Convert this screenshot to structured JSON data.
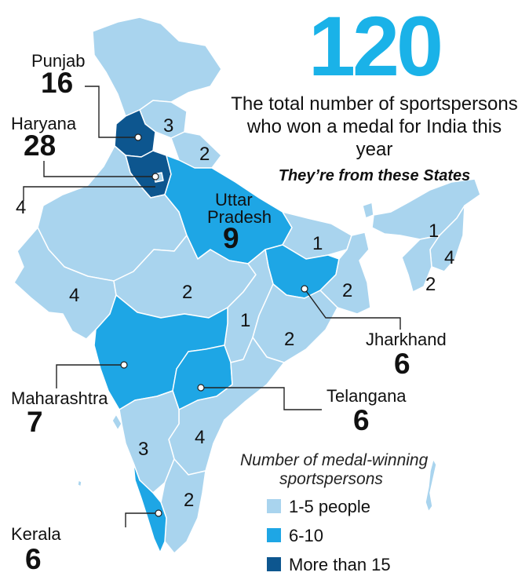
{
  "headline": {
    "big_number": "120",
    "text": "The total number of sportspersons who won a medal for India this year",
    "subhead": "They’re from these States"
  },
  "colors": {
    "low": "#a9d4ee",
    "mid": "#1ea6e5",
    "high": "#0d568f",
    "border": "#ffffff",
    "callout": "#222222"
  },
  "states": {
    "punjab": {
      "name": "Punjab",
      "value": "16",
      "category": "high"
    },
    "haryana": {
      "name": "Haryana",
      "value": "28",
      "category": "high"
    },
    "delhi": {
      "value": "4",
      "category": "low"
    },
    "uttar_pradesh": {
      "name": "Uttar Pradesh",
      "value": "9",
      "category": "mid"
    },
    "himachal": {
      "value": "3",
      "category": "low"
    },
    "uttarakhand": {
      "value": "2",
      "category": "low"
    },
    "rajasthan": {
      "value": "4",
      "category": "low"
    },
    "madhya_pradesh": {
      "value": "2",
      "category": "low"
    },
    "bihar": {
      "value": "1",
      "category": "low"
    },
    "west_bengal": {
      "value": "2",
      "category": "low"
    },
    "chhattisgarh": {
      "value": "1",
      "category": "low"
    },
    "odisha": {
      "value": "2",
      "category": "low"
    },
    "jharkhand": {
      "name": "Jharkhand",
      "value": "6",
      "category": "mid"
    },
    "maharashtra": {
      "name": "Maharashtra",
      "value": "7",
      "category": "mid"
    },
    "telangana": {
      "name": "Telangana",
      "value": "6",
      "category": "mid"
    },
    "karnataka": {
      "value": "3",
      "category": "low"
    },
    "andhra_pradesh": {
      "value": "4",
      "category": "low"
    },
    "tamil_nadu": {
      "value": "2",
      "category": "low"
    },
    "kerala": {
      "name": "Kerala",
      "value": "6",
      "category": "mid"
    },
    "ne_1": {
      "value": "1",
      "category": "low"
    },
    "ne_4": {
      "value": "4",
      "category": "low"
    },
    "ne_2": {
      "value": "2",
      "category": "low"
    }
  },
  "legend": {
    "title_line1": "Number of medal-winning",
    "title_line2": "sportspersons",
    "items": [
      {
        "label": "1-5 people",
        "category": "low"
      },
      {
        "label": "6-10",
        "category": "mid"
      },
      {
        "label": "More than 15",
        "category": "high"
      }
    ]
  }
}
